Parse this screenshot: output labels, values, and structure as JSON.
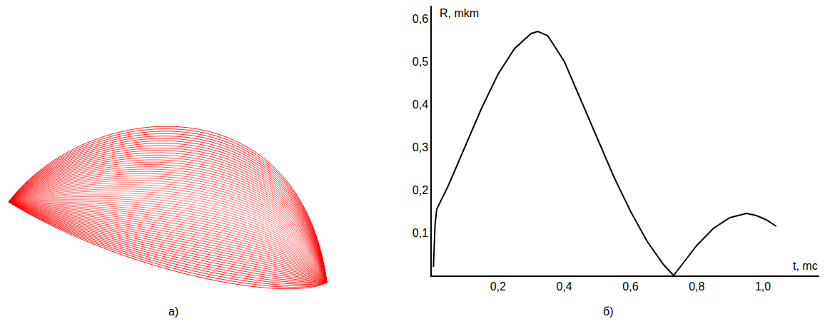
{
  "chart_data": [
    {
      "type": "curve_family",
      "label": "а)",
      "color": "#ff0000"
    },
    {
      "type": "line",
      "label": "б)",
      "x_label": "t, mc",
      "y_label": "R, mkm",
      "color": "#000000",
      "x": [
        0.005,
        0.01,
        0.015,
        0.05,
        0.1,
        0.15,
        0.2,
        0.25,
        0.3,
        0.32,
        0.35,
        0.4,
        0.45,
        0.5,
        0.55,
        0.6,
        0.65,
        0.7,
        0.73,
        0.76,
        0.8,
        0.85,
        0.9,
        0.95,
        0.98,
        1.01,
        1.04
      ],
      "values": [
        0.02,
        0.12,
        0.155,
        0.21,
        0.3,
        0.39,
        0.47,
        0.53,
        0.565,
        0.57,
        0.56,
        0.5,
        0.41,
        0.32,
        0.23,
        0.15,
        0.08,
        0.025,
        0.0,
        0.03,
        0.07,
        0.11,
        0.135,
        0.145,
        0.14,
        0.13,
        0.115
      ],
      "xlim": [
        0,
        1.17
      ],
      "ylim": [
        0,
        0.63
      ],
      "xticks": [
        {
          "value": 0.2,
          "label": "0,2"
        },
        {
          "value": 0.4,
          "label": "0,4"
        },
        {
          "value": 0.6,
          "label": "0,6"
        },
        {
          "value": 0.8,
          "label": "0,8"
        },
        {
          "value": 1.0,
          "label": "1,0"
        }
      ],
      "yticks": [
        {
          "value": 0.1,
          "label": "0,1"
        },
        {
          "value": 0.2,
          "label": "0,2"
        },
        {
          "value": 0.3,
          "label": "0,3"
        },
        {
          "value": 0.4,
          "label": "0,4"
        },
        {
          "value": 0.5,
          "label": "0,5"
        },
        {
          "value": 0.6,
          "label": "0,6"
        }
      ],
      "grid": false
    }
  ]
}
